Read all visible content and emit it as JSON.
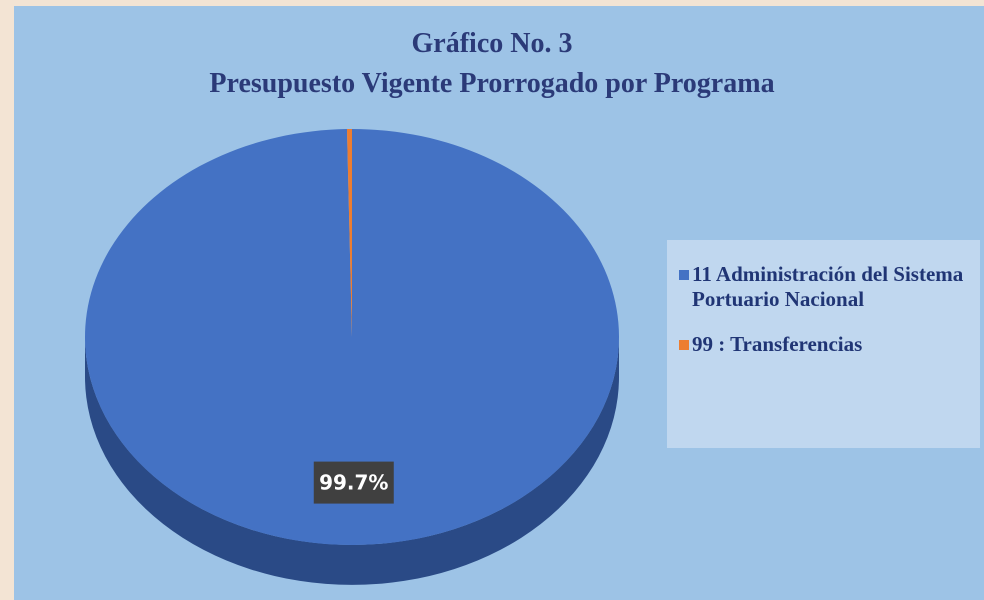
{
  "chart_data": {
    "type": "pie3d",
    "title": "Gráfico No. 3",
    "subtitle": "Presupuesto Vigente Prorrogado por Programa",
    "categories": [
      "11 Administración del Sistema Portuario Nacional",
      "99 : Transferencias"
    ],
    "values": [
      99.7,
      0.3
    ],
    "value_labels": [
      "99.7%",
      null
    ],
    "colors": [
      "#4472c4",
      "#ed7d31"
    ],
    "side_colors": [
      "#2a4a86",
      "#a8561f"
    ],
    "legend": "right"
  }
}
